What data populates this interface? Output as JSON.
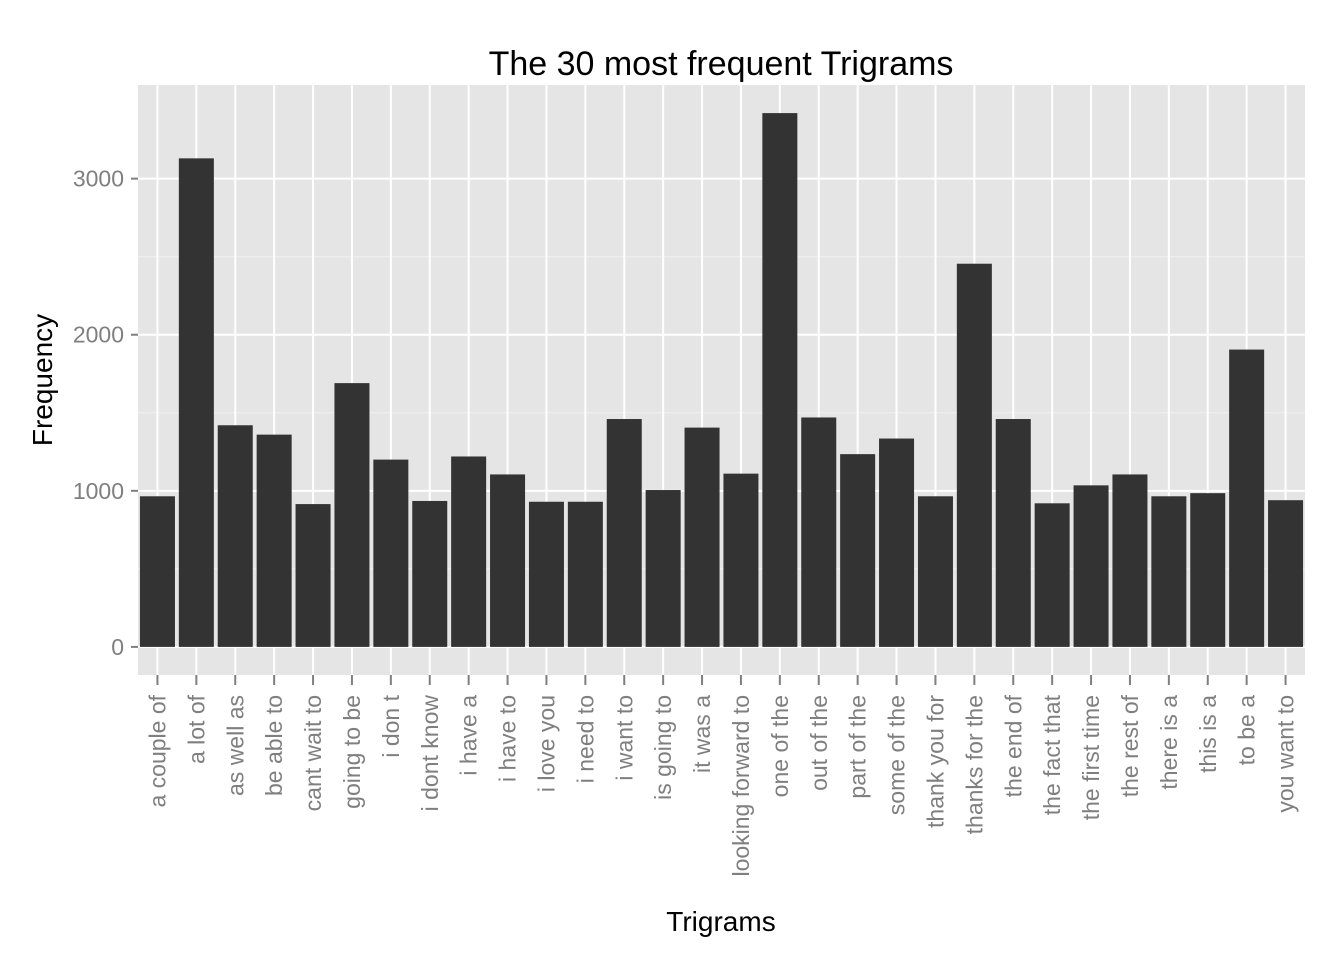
{
  "chart_data": {
    "type": "bar",
    "title": "The 30 most frequent Trigrams",
    "xlabel": "Trigrams",
    "ylabel": "Frequency",
    "categories": [
      "a couple of",
      "a lot of",
      "as well as",
      "be able to",
      "cant wait to",
      "going to be",
      "i don t",
      "i dont know",
      "i have a",
      "i have to",
      "i love you",
      "i need to",
      "i want to",
      "is going to",
      "it was a",
      "looking forward to",
      "one of the",
      "out of the",
      "part of the",
      "some of the",
      "thank you for",
      "thanks for the",
      "the end of",
      "the fact that",
      "the first time",
      "the rest of",
      "there is a",
      "this is a",
      "to be a",
      "you want to"
    ],
    "values": [
      965,
      3130,
      1420,
      1360,
      915,
      1690,
      1200,
      935,
      1220,
      1105,
      930,
      930,
      1460,
      1005,
      1405,
      1110,
      3420,
      1470,
      1235,
      1335,
      965,
      2455,
      1460,
      920,
      1035,
      1105,
      965,
      985,
      1905,
      940
    ],
    "ylim": [
      -180,
      3600
    ],
    "yticks": [
      0,
      1000,
      2000,
      3000
    ],
    "ytick_labels": [
      "0",
      "1000",
      "2000",
      "3000"
    ],
    "grid": true,
    "colors": {
      "panel_background": "#e5e5e5",
      "grid_major": "#ffffff",
      "grid_minor": "#f2f2f2",
      "bar_fill": "#333333",
      "tick_label": "#7f7f7f",
      "tick_mark": "#7f7f7f",
      "title": "#000000"
    }
  }
}
